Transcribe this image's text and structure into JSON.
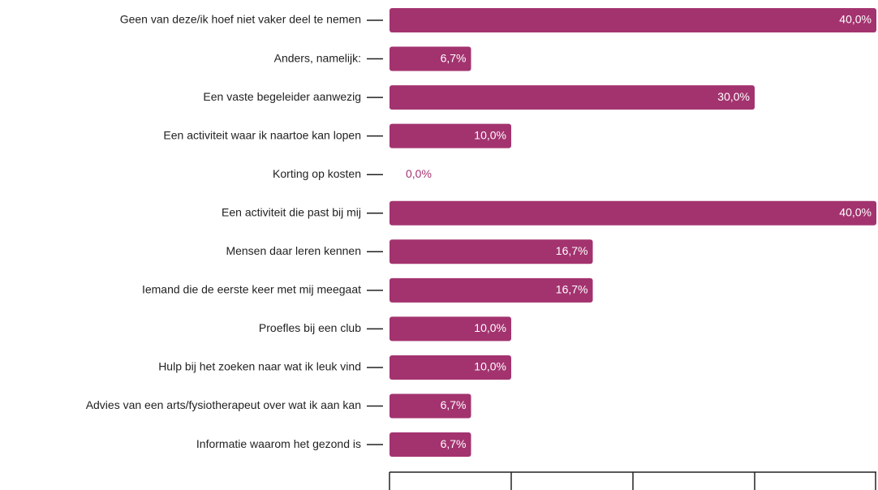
{
  "chart_data": {
    "type": "hbar",
    "categories": [
      "Geen van deze/ik hoef niet vaker deel te nemen",
      "Anders, namelijk:",
      "Een vaste begeleider aanwezig",
      "Een activiteit waar ik naartoe kan lopen",
      "Korting op kosten",
      "Een activiteit die past bij mij",
      "Mensen daar leren kennen",
      "Iemand die de eerste keer met mij meegaat",
      "Proefles bij een club",
      "Hulp bij het zoeken naar wat ik leuk vind",
      "Advies van een arts/fysiotherapeut over wat ik aan kan",
      "Informatie waarom het gezond is"
    ],
    "values": [
      40,
      6.7,
      30,
      10,
      0,
      40,
      16.7,
      16.7,
      10,
      10,
      6.7,
      6.7
    ],
    "value_labels": [
      "40,0%",
      "6,7%",
      "30,0%",
      "10,0%",
      "0,0%",
      "40,0%",
      "16,7%",
      "16,7%",
      "10,0%",
      "10,0%",
      "6,7%",
      "6,7%"
    ],
    "color": "#a3336f",
    "xlim": [
      0,
      40
    ],
    "xticks": [
      0,
      10,
      20,
      30,
      40
    ]
  }
}
